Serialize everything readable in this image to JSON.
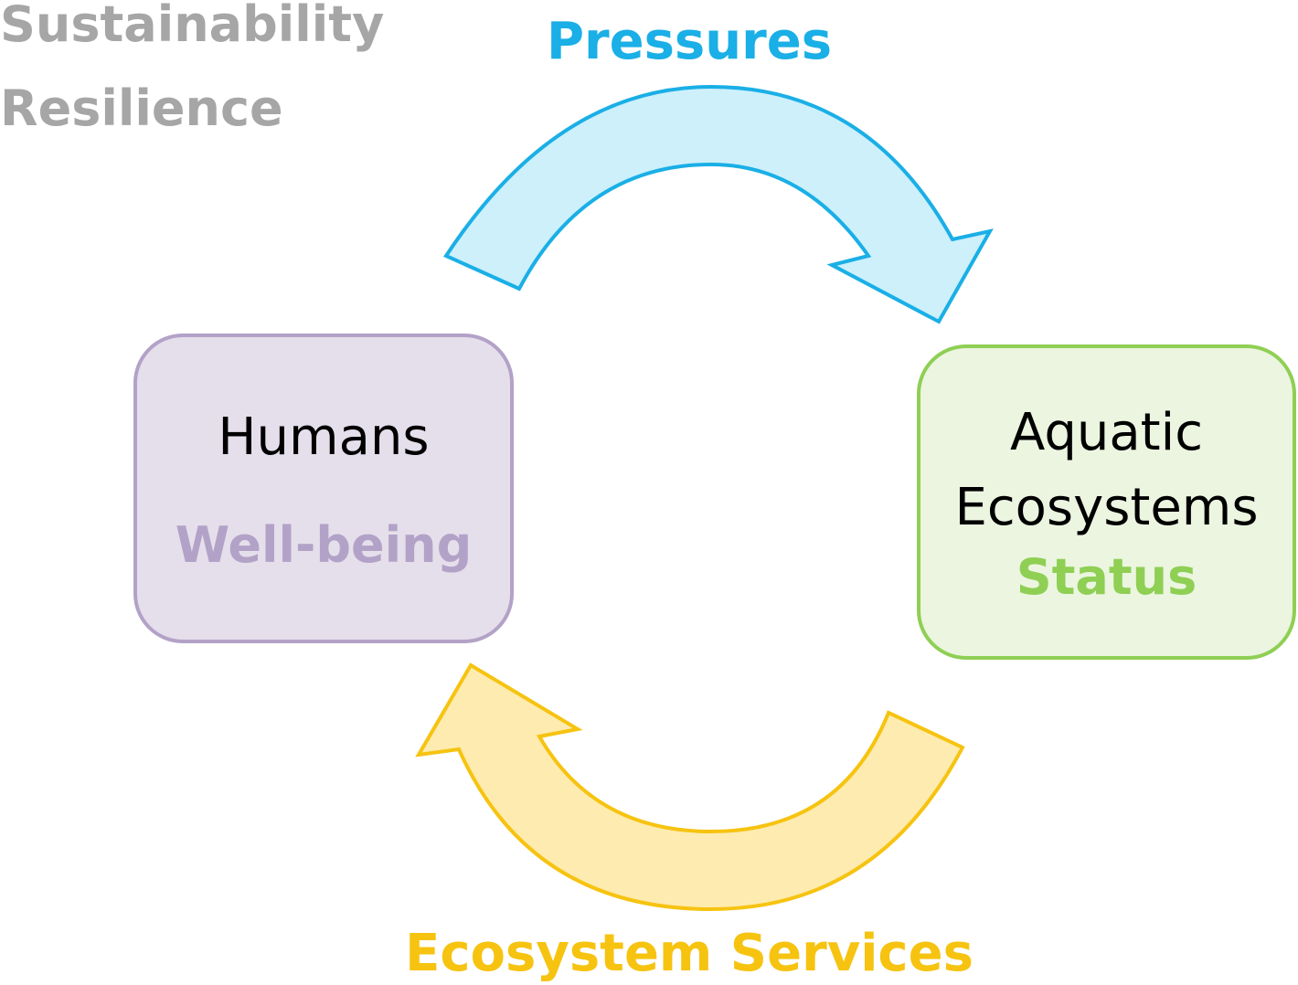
{
  "corner_labels": {
    "sustainability": "Sustainability",
    "resilience": "Resilience"
  },
  "flows": {
    "pressures": {
      "label": "Pressures",
      "color": "#1aafe6",
      "fill": "#cdf0fb",
      "direction": "Humans to Aquatic Ecosystems"
    },
    "services": {
      "label": "Ecosystem Services",
      "color": "#f6c310",
      "fill": "#feebaf",
      "direction": "Aquatic Ecosystems to Humans"
    }
  },
  "nodes": {
    "humans": {
      "title": "Humans",
      "subtitle": "Well-being",
      "fill": "#e5dfeb",
      "border": "#b3a2c7"
    },
    "aquatic": {
      "title": "Aquatic\nEcosystems",
      "subtitle": "Status",
      "fill": "#ebf5e0",
      "border": "#8fcf54"
    }
  }
}
